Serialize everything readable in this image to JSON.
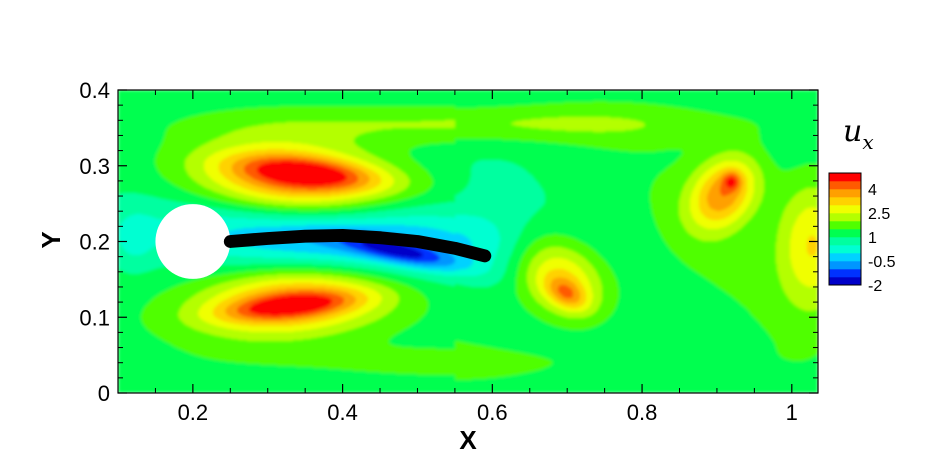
{
  "chart_data": {
    "type": "heatmap",
    "title": "",
    "xlabel": "X",
    "ylabel": "Y",
    "xlim": [
      0.1,
      1.035
    ],
    "ylim": [
      0,
      0.4
    ],
    "x_ticks": [
      0.2,
      0.4,
      0.6,
      0.8,
      1
    ],
    "x_tick_labels": [
      "0.2",
      "0.4",
      "0.6",
      "0.8",
      "1"
    ],
    "y_ticks": [
      0,
      0.1,
      0.2,
      0.3,
      0.4
    ],
    "y_tick_labels": [
      "0",
      "0.1",
      "0.2",
      "0.3",
      "0.4"
    ],
    "grid": false,
    "colorbar": {
      "variable": "u",
      "subscript": "x",
      "placement": "right",
      "levels": [
        -2,
        -1.5,
        -1,
        -0.5,
        0,
        0.5,
        1,
        1.5,
        2,
        2.5,
        3,
        3.5,
        4,
        4.5
      ],
      "tick_values": [
        4,
        2.5,
        1,
        -0.5,
        -2
      ],
      "tick_labels": [
        "4",
        "2.5",
        "1",
        "-0.5",
        "-2"
      ],
      "colors": [
        "#0000c8",
        "#0032ff",
        "#0096ff",
        "#00d2ff",
        "#00ffd2",
        "#00ffa0",
        "#00ff50",
        "#50ff00",
        "#b4ff00",
        "#f0ff00",
        "#ffd200",
        "#ffa000",
        "#ff5a00",
        "#ff0000"
      ]
    },
    "obstacle": {
      "shape": "circle",
      "center": [
        0.2,
        0.2
      ],
      "radius": 0.05,
      "color": "#ffffff"
    },
    "flag": {
      "color": "#000000",
      "points": [
        [
          0.25,
          0.2
        ],
        [
          0.3,
          0.204
        ],
        [
          0.35,
          0.207
        ],
        [
          0.4,
          0.208
        ],
        [
          0.45,
          0.205
        ],
        [
          0.5,
          0.2
        ],
        [
          0.55,
          0.191
        ],
        [
          0.59,
          0.181
        ]
      ]
    },
    "background_value": 1.2,
    "features": [
      {
        "name": "upper shear layer",
        "x": 0.33,
        "y": 0.28,
        "sx": 0.13,
        "sy": 0.05,
        "angle": -5,
        "value": 2.8
      },
      {
        "name": "upper shear peak",
        "x": 0.36,
        "y": 0.29,
        "sx": 0.1,
        "sy": 0.02,
        "angle": -6,
        "value": 1.8
      },
      {
        "name": "lower shear layer",
        "x": 0.33,
        "y": 0.12,
        "sx": 0.13,
        "sy": 0.045,
        "angle": 5,
        "value": 2.8
      },
      {
        "name": "lower shear peak",
        "x": 0.33,
        "y": 0.115,
        "sx": 0.09,
        "sy": 0.016,
        "angle": 6,
        "value": 1.6
      },
      {
        "name": "wake deficit",
        "x": 0.4,
        "y": 0.205,
        "sx": 0.22,
        "sy": 0.048,
        "angle": -4,
        "value": -2.2
      },
      {
        "name": "wake core",
        "x": 0.48,
        "y": 0.185,
        "sx": 0.08,
        "sy": 0.015,
        "angle": -12,
        "value": -1.6
      },
      {
        "name": "mid vortex",
        "x": 0.69,
        "y": 0.155,
        "sx": 0.07,
        "sy": 0.05,
        "angle": -35,
        "value": 2.4
      },
      {
        "name": "mid vortex peak",
        "x": 0.7,
        "y": 0.13,
        "sx": 0.03,
        "sy": 0.018,
        "angle": -30,
        "value": 1.4
      },
      {
        "name": "right vortex",
        "x": 0.91,
        "y": 0.265,
        "sx": 0.04,
        "sy": 0.055,
        "angle": -40,
        "value": 2.6
      },
      {
        "name": "right vortex peak",
        "x": 0.92,
        "y": 0.28,
        "sx": 0.012,
        "sy": 0.012,
        "angle": 0,
        "value": 1.2
      },
      {
        "name": "right edge lobe",
        "x": 1.03,
        "y": 0.2,
        "sx": 0.05,
        "sy": 0.09,
        "angle": 0,
        "value": 2.0
      },
      {
        "name": "upper band",
        "x": 0.6,
        "y": 0.355,
        "sx": 0.35,
        "sy": 0.025,
        "angle": 0,
        "value": 0.9
      },
      {
        "name": "lower band",
        "x": 0.55,
        "y": 0.04,
        "sx": 0.35,
        "sy": 0.025,
        "angle": 0,
        "value": 0.4
      },
      {
        "name": "upstream stagnation",
        "x": 0.12,
        "y": 0.2,
        "sx": 0.03,
        "sy": 0.04,
        "angle": 0,
        "value": -0.6
      }
    ]
  }
}
